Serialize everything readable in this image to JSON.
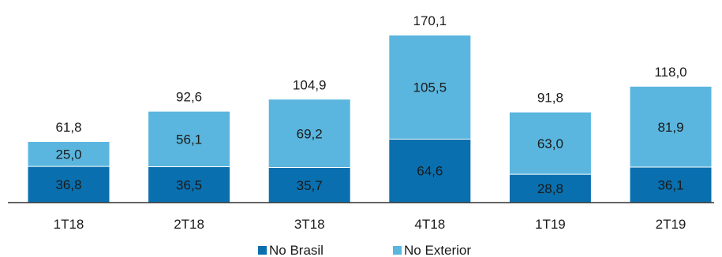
{
  "chart_data": {
    "type": "bar",
    "stacked": true,
    "categories": [
      "1T18",
      "2T18",
      "3T18",
      "4T18",
      "1T19",
      "2T19"
    ],
    "series": [
      {
        "name": "No Brasil",
        "color": "#0a6fae",
        "values": [
          36.8,
          36.5,
          35.7,
          64.6,
          28.8,
          36.1
        ],
        "labels": [
          "36,8",
          "36,5",
          "35,7",
          "64,6",
          "28,8",
          "36,1"
        ]
      },
      {
        "name": "No Exterior",
        "color": "#5ab6de",
        "values": [
          25.0,
          56.1,
          69.2,
          105.5,
          63.0,
          81.9
        ],
        "labels": [
          "25,0",
          "56,1",
          "69,2",
          "105,5",
          "63,0",
          "81,9"
        ]
      }
    ],
    "totals": [
      61.8,
      92.6,
      104.9,
      170.1,
      91.8,
      118.0
    ],
    "total_labels": [
      "61,8",
      "92,6",
      "104,9",
      "170,1",
      "91,8",
      "118,0"
    ],
    "ylim": [
      0,
      170.1
    ],
    "grid": false,
    "legend_position": "bottom-center",
    "axis_color": "#333333"
  }
}
